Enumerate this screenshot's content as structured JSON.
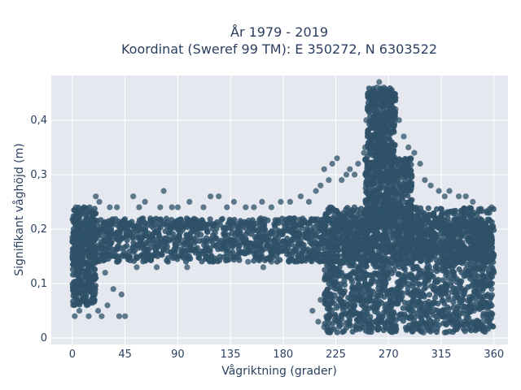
{
  "chart_data": {
    "type": "scatter",
    "title_line1": "År 1979 - 2019",
    "title_line2": "Koordinat (Sweref 99 TM): E 350272, N 6303522",
    "xlabel": "Vågriktning (grader)",
    "ylabel": "Signifikant våghöjd (m)",
    "xlim": [
      -18,
      372
    ],
    "ylim": [
      -0.012,
      0.482
    ],
    "xticks": [
      0,
      45,
      90,
      135,
      180,
      225,
      270,
      315,
      360
    ],
    "xtick_labels": [
      "0",
      "45",
      "90",
      "135",
      "180",
      "225",
      "270",
      "315",
      "360"
    ],
    "yticks": [
      0,
      0.1,
      0.2,
      0.3,
      0.4
    ],
    "ytick_labels": [
      "0",
      "0,1",
      "0,2",
      "0,3",
      "0,4"
    ],
    "grid": true,
    "point_color": "#2e5168",
    "plot_background": "#e5e8ef",
    "density_regions": [
      {
        "x": [
          0,
          360
        ],
        "y": [
          0.14,
          0.22
        ]
      },
      {
        "x": [
          0,
          20
        ],
        "y": [
          0.06,
          0.24
        ]
      },
      {
        "x": [
          215,
          360
        ],
        "y": [
          0.01,
          0.24
        ]
      },
      {
        "x": [
          250,
          290
        ],
        "y": [
          0.22,
          0.33
        ]
      },
      {
        "x": [
          252,
          276
        ],
        "y": [
          0.33,
          0.46
        ]
      }
    ],
    "points": [
      {
        "x": 2,
        "y": 0.04
      },
      {
        "x": 6,
        "y": 0.05
      },
      {
        "x": 10,
        "y": 0.07
      },
      {
        "x": 14,
        "y": 0.04
      },
      {
        "x": 22,
        "y": 0.05
      },
      {
        "x": 25,
        "y": 0.04
      },
      {
        "x": 30,
        "y": 0.06
      },
      {
        "x": 40,
        "y": 0.04
      },
      {
        "x": 45,
        "y": 0.04
      },
      {
        "x": 42,
        "y": 0.08
      },
      {
        "x": 35,
        "y": 0.09
      },
      {
        "x": 20,
        "y": 0.11
      },
      {
        "x": 28,
        "y": 0.12
      },
      {
        "x": 8,
        "y": 0.1
      },
      {
        "x": 4,
        "y": 0.12
      },
      {
        "x": 15,
        "y": 0.13
      },
      {
        "x": 3,
        "y": 0.24
      },
      {
        "x": 6,
        "y": 0.23
      },
      {
        "x": 10,
        "y": 0.24
      },
      {
        "x": 20,
        "y": 0.26
      },
      {
        "x": 23,
        "y": 0.25
      },
      {
        "x": 32,
        "y": 0.24
      },
      {
        "x": 38,
        "y": 0.24
      },
      {
        "x": 52,
        "y": 0.26
      },
      {
        "x": 57,
        "y": 0.24
      },
      {
        "x": 62,
        "y": 0.25
      },
      {
        "x": 75,
        "y": 0.24
      },
      {
        "x": 78,
        "y": 0.27
      },
      {
        "x": 85,
        "y": 0.24
      },
      {
        "x": 90,
        "y": 0.24
      },
      {
        "x": 100,
        "y": 0.25
      },
      {
        "x": 112,
        "y": 0.24
      },
      {
        "x": 118,
        "y": 0.26
      },
      {
        "x": 125,
        "y": 0.26
      },
      {
        "x": 132,
        "y": 0.24
      },
      {
        "x": 138,
        "y": 0.25
      },
      {
        "x": 148,
        "y": 0.24
      },
      {
        "x": 155,
        "y": 0.24
      },
      {
        "x": 162,
        "y": 0.25
      },
      {
        "x": 170,
        "y": 0.24
      },
      {
        "x": 178,
        "y": 0.25
      },
      {
        "x": 186,
        "y": 0.25
      },
      {
        "x": 195,
        "y": 0.26
      },
      {
        "x": 202,
        "y": 0.25
      },
      {
        "x": 208,
        "y": 0.27
      },
      {
        "x": 212,
        "y": 0.28
      },
      {
        "x": 215,
        "y": 0.31
      },
      {
        "x": 219,
        "y": 0.29
      },
      {
        "x": 222,
        "y": 0.32
      },
      {
        "x": 226,
        "y": 0.33
      },
      {
        "x": 230,
        "y": 0.29
      },
      {
        "x": 234,
        "y": 0.3
      },
      {
        "x": 237,
        "y": 0.31
      },
      {
        "x": 241,
        "y": 0.3
      },
      {
        "x": 244,
        "y": 0.32
      },
      {
        "x": 55,
        "y": 0.13
      },
      {
        "x": 72,
        "y": 0.13
      },
      {
        "x": 98,
        "y": 0.13
      },
      {
        "x": 120,
        "y": 0.14
      },
      {
        "x": 150,
        "y": 0.14
      },
      {
        "x": 163,
        "y": 0.13
      },
      {
        "x": 170,
        "y": 0.14
      },
      {
        "x": 185,
        "y": 0.14
      },
      {
        "x": 200,
        "y": 0.16
      },
      {
        "x": 205,
        "y": 0.18
      },
      {
        "x": 210,
        "y": 0.17
      },
      {
        "x": 216,
        "y": 0.15
      },
      {
        "x": 220,
        "y": 0.18
      },
      {
        "x": 205,
        "y": 0.05
      },
      {
        "x": 210,
        "y": 0.03
      },
      {
        "x": 215,
        "y": 0.02
      },
      {
        "x": 220,
        "y": 0.01
      },
      {
        "x": 226,
        "y": 0.1
      },
      {
        "x": 228,
        "y": 0.09
      },
      {
        "x": 230,
        "y": 0.12
      },
      {
        "x": 233,
        "y": 0.15
      },
      {
        "x": 212,
        "y": 0.07
      },
      {
        "x": 217,
        "y": 0.04
      },
      {
        "x": 300,
        "y": 0.01
      },
      {
        "x": 306,
        "y": 0.02
      },
      {
        "x": 318,
        "y": 0.01
      },
      {
        "x": 326,
        "y": 0.03
      },
      {
        "x": 334,
        "y": 0.05
      },
      {
        "x": 343,
        "y": 0.05
      },
      {
        "x": 350,
        "y": 0.03
      },
      {
        "x": 355,
        "y": 0.05
      },
      {
        "x": 358,
        "y": 0.09
      },
      {
        "x": 360,
        "y": 0.12
      },
      {
        "x": 358,
        "y": 0.24
      },
      {
        "x": 354,
        "y": 0.23
      },
      {
        "x": 342,
        "y": 0.25
      },
      {
        "x": 336,
        "y": 0.26
      },
      {
        "x": 330,
        "y": 0.26
      },
      {
        "x": 322,
        "y": 0.27
      },
      {
        "x": 318,
        "y": 0.26
      },
      {
        "x": 313,
        "y": 0.27
      },
      {
        "x": 306,
        "y": 0.28
      },
      {
        "x": 301,
        "y": 0.29
      },
      {
        "x": 297,
        "y": 0.32
      },
      {
        "x": 292,
        "y": 0.34
      },
      {
        "x": 287,
        "y": 0.35
      },
      {
        "x": 283,
        "y": 0.37
      },
      {
        "x": 279,
        "y": 0.4
      },
      {
        "x": 276,
        "y": 0.42
      },
      {
        "x": 272,
        "y": 0.45
      },
      {
        "x": 266,
        "y": 0.46
      },
      {
        "x": 260,
        "y": 0.46
      },
      {
        "x": 256,
        "y": 0.45
      },
      {
        "x": 253,
        "y": 0.44
      },
      {
        "x": 252,
        "y": 0.42
      },
      {
        "x": 251,
        "y": 0.4
      },
      {
        "x": 252,
        "y": 0.37
      },
      {
        "x": 250,
        "y": 0.35
      },
      {
        "x": 249,
        "y": 0.34
      },
      {
        "x": 262,
        "y": 0.47
      },
      {
        "x": 268,
        "y": 0.44
      }
    ]
  }
}
